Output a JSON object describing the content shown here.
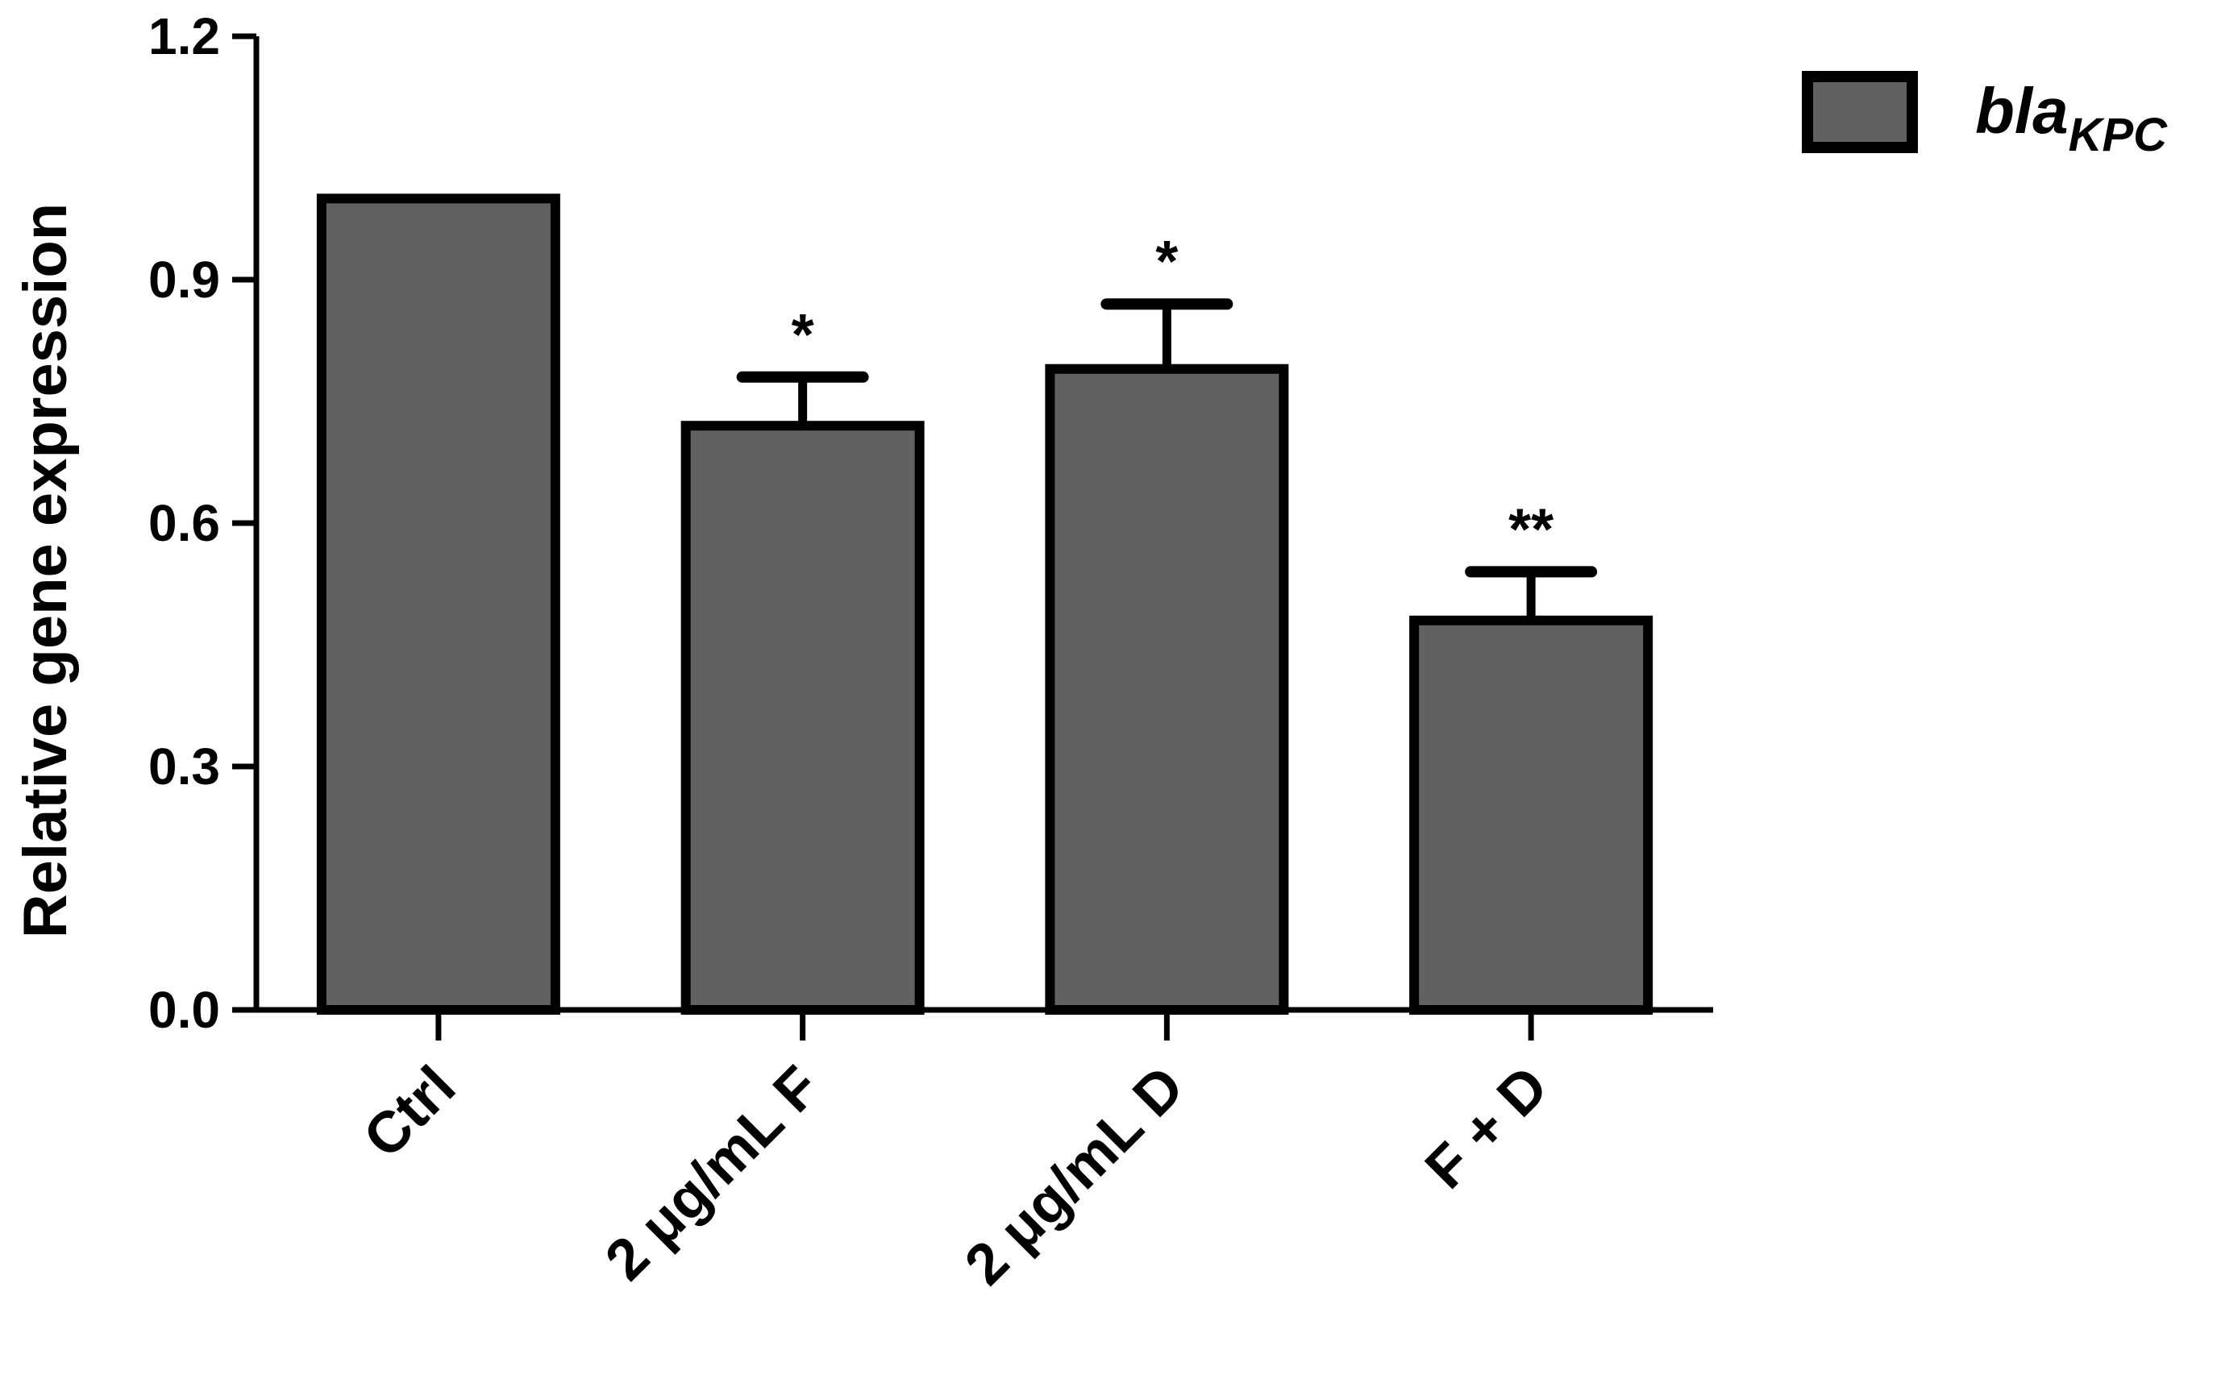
{
  "chart_data": {
    "type": "bar",
    "categories": [
      "Ctrl",
      "2 μg/mL F",
      "2 μg/mL D",
      "F + D"
    ],
    "series": [
      {
        "name": "blaKPC",
        "name_main": "bla",
        "name_subscript": "KPC",
        "values": [
          1.0,
          0.72,
          0.79,
          0.48
        ],
        "error_upper": [
          0.0,
          0.06,
          0.08,
          0.06
        ],
        "significance": [
          "",
          "*",
          "*",
          "**"
        ]
      }
    ],
    "ylabel": "Relative gene expression",
    "xlabel": "",
    "ylim": [
      0,
      1.2
    ],
    "yticks": [
      "0.0",
      "0.3",
      "0.6",
      "0.9",
      "1.2"
    ],
    "ytick_values": [
      0,
      0.3,
      0.6,
      0.9,
      1.2
    ],
    "grid": false,
    "legend_position": "top-right",
    "bar_color": "#616161",
    "edge_color": "#000000"
  }
}
